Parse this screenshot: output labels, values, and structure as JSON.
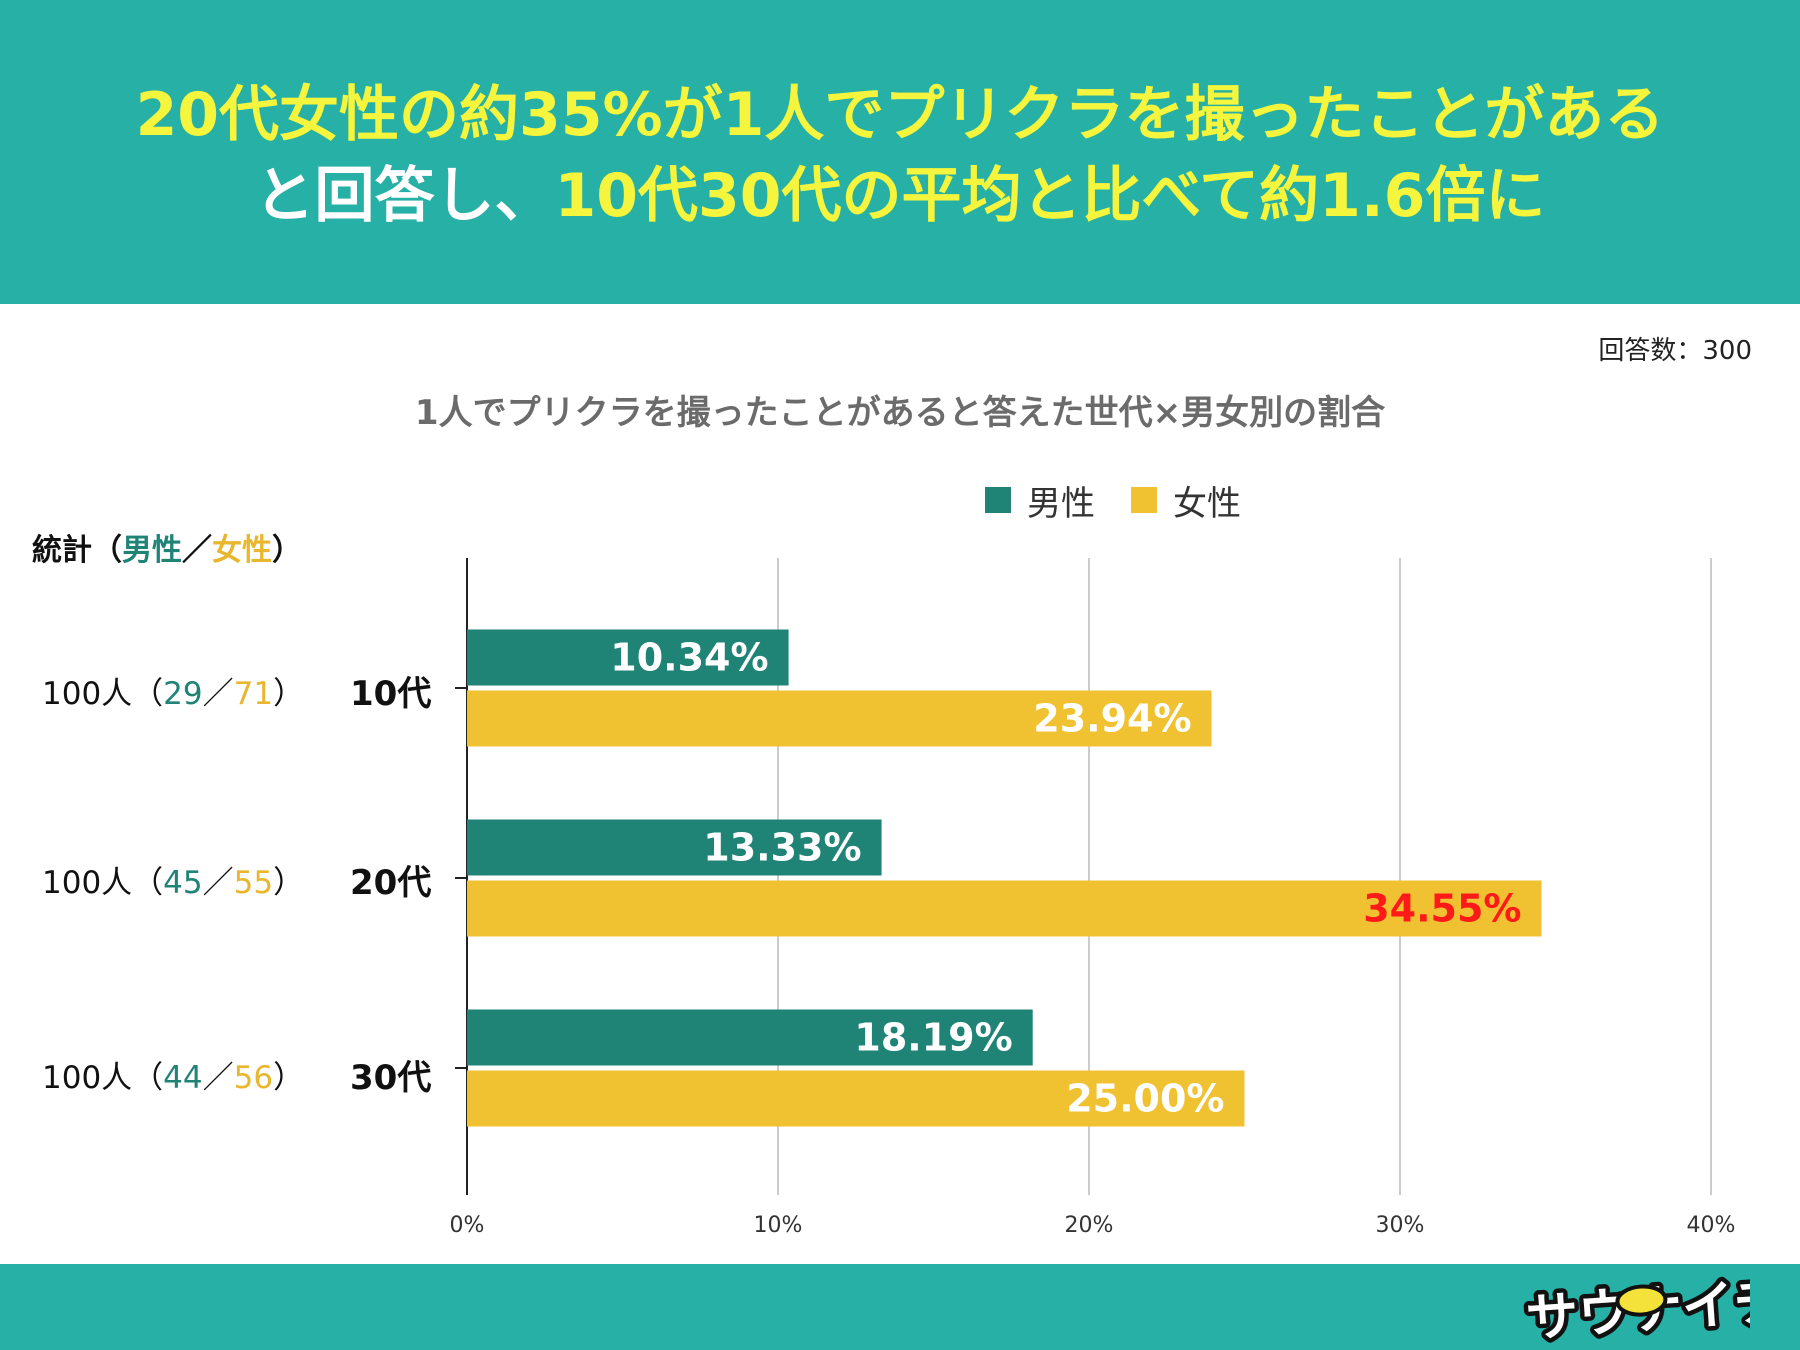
{
  "header": {
    "line1": "20代女性の約35%が1人でプリクラを撮ったことがある",
    "line2_white": "と回答し、",
    "line2_yellow": "10代30代の平均と比べて約1.6倍に"
  },
  "respondents": "回答数：300",
  "stats": {
    "label_prefix": "統計（",
    "label_male": "男性",
    "label_sep": "／",
    "label_female": "女性",
    "label_suffix": "）",
    "rows": [
      {
        "total": "100人（",
        "male": "29",
        "sep": "／",
        "female": "71",
        "close": "）"
      },
      {
        "total": "100人（",
        "male": "45",
        "sep": "／",
        "female": "55",
        "close": "）"
      },
      {
        "total": "100人（",
        "male": "44",
        "sep": "／",
        "female": "56",
        "close": "）"
      }
    ]
  },
  "chart_data": {
    "type": "bar",
    "orientation": "horizontal",
    "title": "1人でプリクラを撮ったことがあると答えた世代×男女別の割合",
    "categories": [
      "10代",
      "20代",
      "30代"
    ],
    "series": [
      {
        "name": "男性",
        "color": "#1f8376",
        "values": [
          10.34,
          13.33,
          18.19
        ],
        "labels": [
          "10.34%",
          "13.33%",
          "18.19%"
        ]
      },
      {
        "name": "女性",
        "color": "#f0c232",
        "values": [
          23.94,
          34.55,
          25.0
        ],
        "labels": [
          "23.94%",
          "34.55%",
          "25.00%"
        ]
      }
    ],
    "highlight": {
      "series": 1,
      "index": 1,
      "color": "#ff1a1a"
    },
    "xlim": [
      0,
      40
    ],
    "xticks": [
      0,
      10,
      20,
      30,
      40
    ],
    "xtick_labels": [
      "0%",
      "10%",
      "20%",
      "30%",
      "40%"
    ],
    "grid": true,
    "legend": "top"
  },
  "logo": {
    "text": "サウナイチ"
  }
}
